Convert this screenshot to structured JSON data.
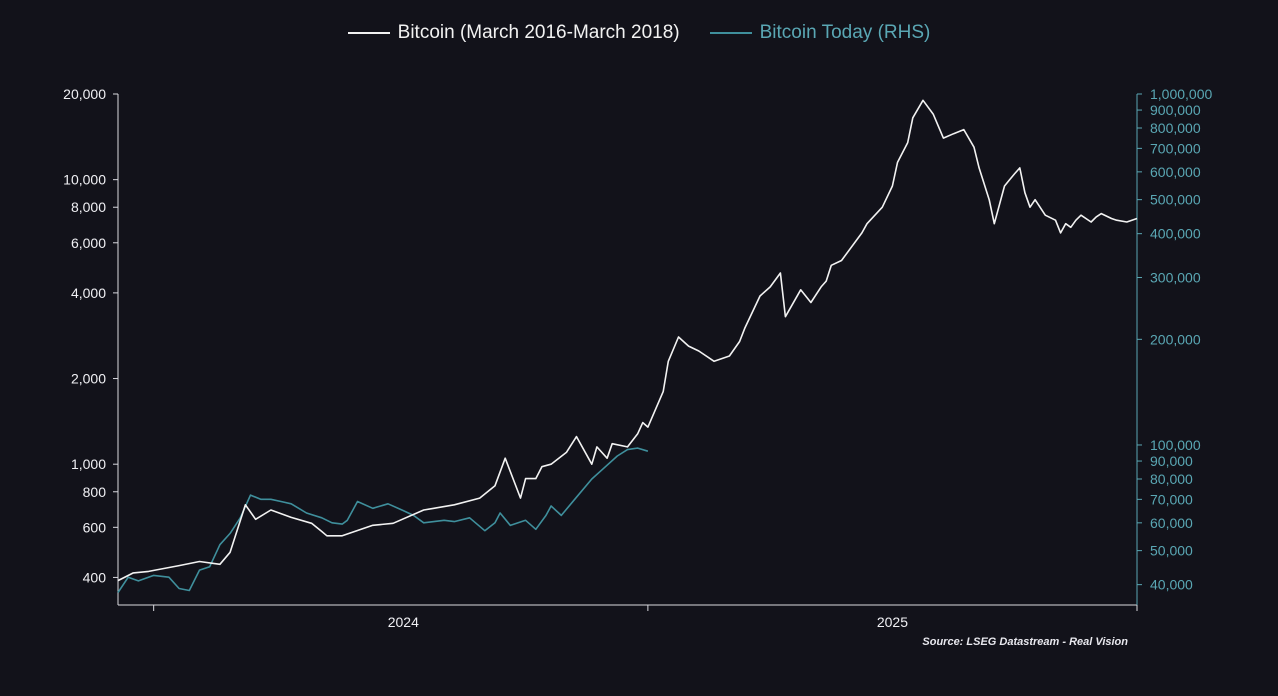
{
  "chart_data": {
    "type": "line",
    "title": "",
    "legend": {
      "position": "top-center"
    },
    "x_axis": {
      "ticks": [
        "2024",
        "2025"
      ]
    },
    "left_axis": {
      "scale": "log",
      "range": [
        320,
        20000
      ],
      "ticks": [
        400,
        600,
        800,
        1000,
        2000,
        4000,
        6000,
        8000,
        10000,
        20000
      ],
      "tick_labels": [
        "400",
        "600",
        "800",
        "1,000",
        "2,000",
        "4,000",
        "6,000",
        "8,000",
        "10,000",
        "20,000"
      ]
    },
    "right_axis": {
      "scale": "log",
      "range": [
        35000,
        1000000
      ],
      "ticks": [
        40000,
        50000,
        60000,
        70000,
        80000,
        90000,
        100000,
        200000,
        300000,
        400000,
        500000,
        600000,
        700000,
        800000,
        900000,
        1000000
      ],
      "tick_labels": [
        "40,000",
        "50,000",
        "60,000",
        "70,000",
        "80,000",
        "90,000",
        "100,000",
        "200,000",
        "300,000",
        "400,000",
        "500,000",
        "600,000",
        "700,000",
        "800,000",
        "900,000",
        "1,000,000"
      ]
    },
    "series": [
      {
        "name": "Bitcoin (March 2016-March 2018)",
        "axis": "left",
        "color": "#f2f2f2",
        "x": [
          0,
          0.015,
          0.03,
          0.06,
          0.08,
          0.1,
          0.11,
          0.125,
          0.135,
          0.15,
          0.17,
          0.19,
          0.2,
          0.205,
          0.22,
          0.25,
          0.27,
          0.3,
          0.31,
          0.33,
          0.355,
          0.37,
          0.38,
          0.395,
          0.4,
          0.41,
          0.416,
          0.425,
          0.44,
          0.45,
          0.465,
          0.47,
          0.48,
          0.485,
          0.5,
          0.51,
          0.515,
          0.52,
          0.535,
          0.54,
          0.55,
          0.56,
          0.57,
          0.585,
          0.6,
          0.61,
          0.615,
          0.63,
          0.64,
          0.65,
          0.655,
          0.67,
          0.68,
          0.69,
          0.695,
          0.7,
          0.71,
          0.73,
          0.735,
          0.75,
          0.76,
          0.765,
          0.775,
          0.78,
          0.79,
          0.8,
          0.81,
          0.82,
          0.83,
          0.84,
          0.845,
          0.855,
          0.86,
          0.87,
          0.875,
          0.88,
          0.885,
          0.89,
          0.895,
          0.9,
          0.91,
          0.92,
          0.925,
          0.93,
          0.935,
          0.94,
          0.945,
          0.955,
          0.96,
          0.965,
          0.975,
          0.98,
          0.99,
          0.995,
          1.0
        ],
        "values": [
          390,
          415,
          420,
          440,
          455,
          445,
          490,
          720,
          640,
          690,
          650,
          620,
          580,
          560,
          560,
          610,
          620,
          690,
          700,
          720,
          760,
          840,
          1050,
          760,
          890,
          890,
          980,
          1000,
          1100,
          1250,
          1000,
          1150,
          1050,
          1180,
          1150,
          1280,
          1400,
          1350,
          1800,
          2300,
          2800,
          2600,
          2500,
          2300,
          2400,
          2700,
          3000,
          3900,
          4200,
          4700,
          3300,
          4100,
          3700,
          4200,
          4400,
          5000,
          5200,
          6500,
          7000,
          8000,
          9500,
          11500,
          13500,
          16500,
          19000,
          17000,
          14000,
          14500,
          15000,
          13000,
          11000,
          8500,
          7000,
          9500,
          10000,
          10500,
          11000,
          9000,
          8000,
          8500,
          7500,
          7200,
          6500,
          7000,
          6800,
          7200,
          7500,
          7100,
          7400,
          7600,
          7300,
          7200,
          7100,
          7200,
          7300
        ]
      },
      {
        "name": "Bitcoin Today (RHS)",
        "axis": "right",
        "color": "#3f8f9c",
        "x": [
          0,
          0.01,
          0.02,
          0.035,
          0.05,
          0.06,
          0.07,
          0.08,
          0.09,
          0.1,
          0.11,
          0.12,
          0.13,
          0.14,
          0.15,
          0.16,
          0.17,
          0.185,
          0.2,
          0.21,
          0.22,
          0.225,
          0.235,
          0.25,
          0.265,
          0.28,
          0.29,
          0.3,
          0.32,
          0.33,
          0.345,
          0.36,
          0.37,
          0.375,
          0.385,
          0.4,
          0.41,
          0.42,
          0.425,
          0.435,
          0.45,
          0.465,
          0.475,
          0.49,
          0.5,
          0.51,
          0.52
        ],
        "values": [
          38000,
          42000,
          41000,
          42500,
          42000,
          39000,
          38500,
          44000,
          45000,
          52000,
          56000,
          62000,
          72000,
          70000,
          70000,
          69000,
          68000,
          64000,
          62000,
          60000,
          59500,
          61000,
          69000,
          66000,
          68000,
          65000,
          63000,
          60000,
          61000,
          60500,
          62000,
          57000,
          60000,
          64000,
          59000,
          61000,
          57500,
          63000,
          67000,
          63000,
          71000,
          80000,
          85000,
          93000,
          97000,
          98000,
          96000
        ]
      }
    ]
  },
  "legend": {
    "series1_label": "Bitcoin (March 2016-March 2018)",
    "series2_label": "Bitcoin Today (RHS)"
  },
  "source": "Source: LSEG Datastream - Real Vision",
  "colors": {
    "background": "#12121a",
    "series1": "#f2f2f2",
    "series2": "#3f8f9c",
    "axis": "#d9d9df",
    "right_axis": "#5aa7b4"
  }
}
